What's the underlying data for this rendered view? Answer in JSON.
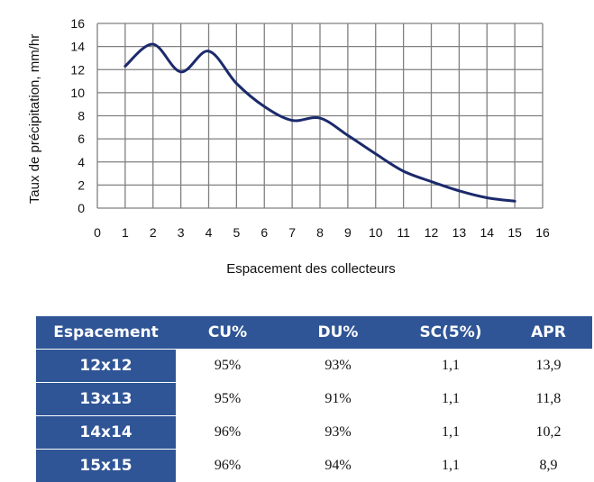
{
  "chart_data": {
    "type": "line",
    "title": "",
    "xlabel": "Espacement des collecteurs",
    "ylabel": "Taux de précipitation, mm/hr",
    "xlim": [
      0,
      16
    ],
    "ylim": [
      0,
      16
    ],
    "xticks": [
      "0",
      "1",
      "2",
      "3",
      "4",
      "5",
      "6",
      "7",
      "8",
      "9",
      "10",
      "11",
      "12",
      "13",
      "14",
      "15",
      "16"
    ],
    "yticks": [
      "0",
      "2",
      "4",
      "6",
      "8",
      "10",
      "12",
      "14",
      "16"
    ],
    "grid": true,
    "legend": "none",
    "series": [
      {
        "color": "#1b2a6b",
        "x": [
          1,
          2,
          3,
          4,
          5,
          6,
          7,
          8,
          9,
          10,
          11,
          12,
          13,
          14,
          15
        ],
        "y": [
          12.3,
          14.2,
          11.8,
          13.6,
          10.8,
          8.8,
          7.6,
          7.8,
          6.3,
          4.7,
          3.2,
          2.3,
          1.5,
          0.9,
          0.6
        ]
      }
    ]
  },
  "table": {
    "headers": [
      "Espacement",
      "CU%",
      "DU%",
      "SC(5%)",
      "APR"
    ],
    "rows": [
      [
        "12x12",
        "95%",
        "93%",
        "1,1",
        "13,9"
      ],
      [
        "13x13",
        "95%",
        "91%",
        "1,1",
        "11,8"
      ],
      [
        "14x14",
        "96%",
        "93%",
        "1,1",
        "10,2"
      ],
      [
        "15x15",
        "96%",
        "94%",
        "1,1",
        "8,9"
      ]
    ]
  },
  "colors": {
    "header_bg": "#2f5596",
    "line": "#1b2a6b",
    "grid": "#808080"
  }
}
